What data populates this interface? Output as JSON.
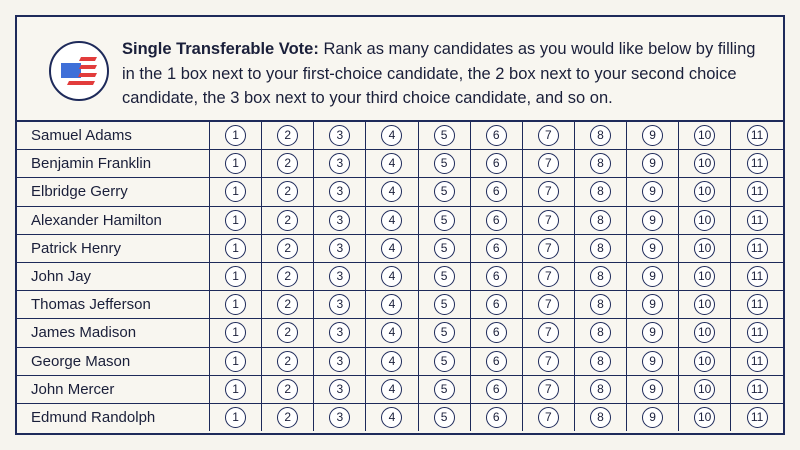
{
  "header": {
    "title": "Single Transferable Vote:",
    "instructions": "Rank as many candidates as you would like below by filling in the 1 box next to your first-choice candidate, the 2 box next to your second choice candidate, the 3 box next to your third choice candidate, and so on."
  },
  "ranks": [
    1,
    2,
    3,
    4,
    5,
    6,
    7,
    8,
    9,
    10,
    11
  ],
  "candidates": [
    "Samuel Adams",
    "Benjamin Franklin",
    "Elbridge Gerry",
    "Alexander Hamilton",
    "Patrick Henry",
    "John Jay",
    "Thomas Jefferson",
    "James Madison",
    "George Mason",
    "John Mercer",
    "Edmund Randolph"
  ]
}
